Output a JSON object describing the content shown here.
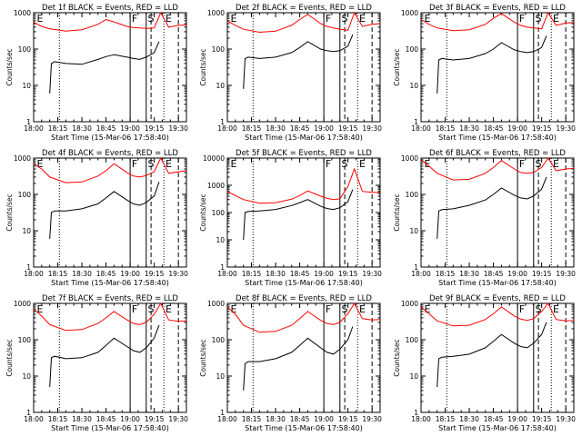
{
  "figure": {
    "axes_color": "#000000",
    "events_color": "#000000",
    "lld_color": "#ff0000"
  },
  "chart_data": [
    {
      "type": "line",
      "title": "Det 1f BLACK = Events, RED = LLD",
      "xlabel": "Start Time (15-Mar-06 17:58:40)",
      "ylabel": "Counts/sec",
      "y_scale": "log",
      "ylim": [
        1,
        1000
      ],
      "yticks": [
        "1",
        "10",
        "100",
        "1000"
      ],
      "xticks": [
        "18:00",
        "18:15",
        "18:30",
        "18:45",
        "19:00",
        "19:15",
        "19:30"
      ],
      "event_markers": [
        "E",
        "F",
        "S",
        "E"
      ],
      "series": [
        {
          "name": "RED = LLD",
          "color": "#ff0000",
          "x_min": [
            0,
            5,
            10,
            20,
            30,
            40,
            45,
            50,
            58,
            62,
            66,
            70,
            75,
            79,
            84,
            90,
            95
          ],
          "values": [
            550,
            420,
            360,
            310,
            340,
            480,
            650,
            560,
            420,
            390,
            380,
            370,
            380,
            1000,
            400,
            450,
            460
          ]
        },
        {
          "name": "BLACK = Events",
          "color": "#000000",
          "x_min": [
            10,
            11,
            13,
            20,
            30,
            40,
            45,
            50,
            58,
            62,
            66,
            70,
            75,
            78
          ],
          "values": [
            6,
            40,
            45,
            40,
            38,
            52,
            62,
            70,
            60,
            55,
            52,
            60,
            80,
            160
          ]
        }
      ]
    },
    {
      "type": "line",
      "title": "Det 2f BLACK = Events, RED = LLD",
      "xlabel": "Start Time (15-Mar-06 17:58:40)",
      "ylabel": "Counts/sec",
      "y_scale": "log",
      "ylim": [
        1,
        1000
      ],
      "yticks": [
        "1",
        "10",
        "100",
        "1000"
      ],
      "xticks": [
        "18:00",
        "18:15",
        "18:30",
        "18:45",
        "19:00",
        "19:15",
        "19:30"
      ],
      "event_markers": [
        "E",
        "F",
        "S",
        "E"
      ],
      "series": [
        {
          "name": "RED = LLD",
          "color": "#ff0000",
          "x_min": [
            0,
            5,
            10,
            20,
            30,
            40,
            45,
            50,
            58,
            62,
            66,
            70,
            75,
            79,
            84,
            90,
            95
          ],
          "values": [
            600,
            450,
            350,
            290,
            310,
            450,
            650,
            900,
            500,
            420,
            380,
            350,
            330,
            1000,
            420,
            480,
            500
          ]
        },
        {
          "name": "BLACK = Events",
          "color": "#000000",
          "x_min": [
            10,
            11,
            13,
            20,
            30,
            40,
            45,
            50,
            58,
            62,
            66,
            70,
            75,
            78
          ],
          "values": [
            8,
            55,
            60,
            55,
            60,
            80,
            110,
            160,
            100,
            90,
            85,
            90,
            120,
            250
          ]
        }
      ]
    },
    {
      "type": "line",
      "title": "Det 3f BLACK = Events, RED = LLD",
      "xlabel": "Start Time (15-Mar-06 17:58:40)",
      "ylabel": "Counts/sec",
      "y_scale": "log",
      "ylim": [
        1,
        1000
      ],
      "yticks": [
        "1",
        "10",
        "100",
        "1000"
      ],
      "xticks": [
        "18:00",
        "18:15",
        "18:30",
        "18:45",
        "19:00",
        "19:15",
        "19:30"
      ],
      "event_markers": [
        "E",
        "F",
        "S",
        "E"
      ],
      "series": [
        {
          "name": "RED = LLD",
          "color": "#ff0000",
          "x_min": [
            0,
            5,
            10,
            20,
            30,
            40,
            45,
            50,
            58,
            62,
            66,
            70,
            75,
            79,
            84,
            90,
            95
          ],
          "values": [
            650,
            480,
            380,
            320,
            340,
            480,
            700,
            950,
            550,
            450,
            400,
            380,
            360,
            1000,
            450,
            520,
            540
          ]
        },
        {
          "name": "BLACK = Events",
          "color": "#000000",
          "x_min": [
            10,
            11,
            13,
            20,
            30,
            40,
            45,
            50,
            58,
            62,
            66,
            70,
            75,
            78
          ],
          "values": [
            6,
            50,
            55,
            50,
            55,
            75,
            100,
            150,
            95,
            85,
            80,
            85,
            110,
            230
          ]
        }
      ]
    },
    {
      "type": "line",
      "title": "Det 4f BLACK = Events, RED = LLD",
      "xlabel": "Start Time (15-Mar-06 17:58:40)",
      "ylabel": "Counts/sec",
      "y_scale": "log",
      "ylim": [
        1,
        1000
      ],
      "yticks": [
        "1",
        "10",
        "100",
        "1000"
      ],
      "xticks": [
        "18:00",
        "18:15",
        "18:30",
        "18:45",
        "19:00",
        "19:15",
        "19:30"
      ],
      "event_markers": [
        "E",
        "F",
        "S",
        "E"
      ],
      "series": [
        {
          "name": "RED = LLD",
          "color": "#ff0000",
          "x_min": [
            0,
            5,
            10,
            20,
            30,
            40,
            45,
            50,
            58,
            62,
            66,
            70,
            75,
            79,
            84,
            90,
            95
          ],
          "values": [
            700,
            500,
            300,
            210,
            220,
            320,
            450,
            700,
            400,
            320,
            300,
            330,
            420,
            1000,
            380,
            420,
            450
          ]
        },
        {
          "name": "BLACK = Events",
          "color": "#000000",
          "x_min": [
            10,
            11,
            13,
            20,
            30,
            40,
            45,
            50,
            58,
            62,
            66,
            70,
            75,
            78
          ],
          "values": [
            6,
            32,
            35,
            35,
            40,
            55,
            80,
            120,
            70,
            55,
            50,
            60,
            90,
            220
          ]
        }
      ]
    },
    {
      "type": "line",
      "title": "Det 5f BLACK = Events, RED = LLD",
      "xlabel": "Start Time (15-Mar-06 17:58:40)",
      "ylabel": "Counts/sec",
      "y_scale": "log",
      "ylim": [
        1,
        10000
      ],
      "yticks": [
        "1",
        "10",
        "100",
        "1000",
        "10000"
      ],
      "xticks": [
        "18:00",
        "18:15",
        "18:30",
        "18:45",
        "19:00",
        "19:15",
        "19:30"
      ],
      "event_markers": [
        "E",
        "F",
        "S",
        "E"
      ],
      "series": [
        {
          "name": "RED = LLD",
          "color": "#ff0000",
          "x_min": [
            0,
            5,
            10,
            20,
            30,
            40,
            45,
            50,
            58,
            62,
            66,
            70,
            75,
            79,
            84,
            90,
            95
          ],
          "values": [
            600,
            420,
            300,
            220,
            230,
            310,
            420,
            620,
            400,
            330,
            300,
            320,
            900,
            4000,
            600,
            550,
            540
          ]
        },
        {
          "name": "BLACK = Events",
          "color": "#000000",
          "x_min": [
            10,
            11,
            13,
            20,
            30,
            40,
            45,
            50,
            58,
            62,
            66,
            70,
            75,
            78
          ],
          "values": [
            10,
            100,
            110,
            115,
            130,
            180,
            230,
            300,
            170,
            140,
            130,
            150,
            250,
            700
          ]
        }
      ]
    },
    {
      "type": "line",
      "title": "Det 6f BLACK = Events, RED = LLD",
      "xlabel": "Start Time (15-Mar-06 17:58:40)",
      "ylabel": "Counts/sec",
      "y_scale": "log",
      "ylim": [
        1,
        1000
      ],
      "yticks": [
        "1",
        "10",
        "100",
        "1000"
      ],
      "xticks": [
        "18:00",
        "18:15",
        "18:30",
        "18:45",
        "19:00",
        "19:15",
        "19:30"
      ],
      "event_markers": [
        "E",
        "F",
        "S",
        "E"
      ],
      "series": [
        {
          "name": "RED = LLD",
          "color": "#ff0000",
          "x_min": [
            0,
            5,
            10,
            20,
            30,
            40,
            45,
            50,
            58,
            62,
            66,
            70,
            75,
            79,
            84,
            90,
            95
          ],
          "values": [
            900,
            600,
            380,
            250,
            260,
            380,
            550,
            850,
            500,
            400,
            380,
            400,
            550,
            1000,
            450,
            500,
            520
          ]
        },
        {
          "name": "BLACK = Events",
          "color": "#000000",
          "x_min": [
            10,
            11,
            13,
            20,
            30,
            40,
            45,
            50,
            58,
            62,
            66,
            70,
            75,
            78
          ],
          "values": [
            6,
            35,
            38,
            40,
            50,
            70,
            100,
            150,
            95,
            80,
            75,
            90,
            140,
            300
          ]
        }
      ]
    },
    {
      "type": "line",
      "title": "Det 7f BLACK = Events, RED = LLD",
      "xlabel": "Start Time (15-Mar-06 17:58:40)",
      "ylabel": "Counts/sec",
      "y_scale": "log",
      "ylim": [
        1,
        1000
      ],
      "yticks": [
        "1",
        "10",
        "100",
        "1000"
      ],
      "xticks": [
        "18:00",
        "18:15",
        "18:30",
        "18:45",
        "19:00",
        "19:15",
        "19:30"
      ],
      "event_markers": [
        "E",
        "F",
        "S",
        "E"
      ],
      "series": [
        {
          "name": "RED = LLD",
          "color": "#ff0000",
          "x_min": [
            0,
            5,
            10,
            20,
            30,
            40,
            45,
            50,
            58,
            62,
            66,
            70,
            75,
            79,
            84,
            90,
            95
          ],
          "values": [
            700,
            450,
            260,
            180,
            190,
            280,
            400,
            600,
            350,
            280,
            260,
            300,
            500,
            1000,
            350,
            320,
            330
          ]
        },
        {
          "name": "BLACK = Events",
          "color": "#000000",
          "x_min": [
            10,
            11,
            13,
            20,
            30,
            40,
            45,
            50,
            58,
            62,
            66,
            70,
            75,
            78
          ],
          "values": [
            5,
            32,
            35,
            30,
            32,
            45,
            70,
            110,
            65,
            50,
            45,
            60,
            110,
            250
          ]
        }
      ]
    },
    {
      "type": "line",
      "title": "Det 8f BLACK = Events, RED = LLD",
      "xlabel": "Start Time (15-Mar-06 17:58:40)",
      "ylabel": "Counts/sec",
      "y_scale": "log",
      "ylim": [
        1,
        1000
      ],
      "yticks": [
        "1",
        "10",
        "100",
        "1000"
      ],
      "xticks": [
        "18:00",
        "18:15",
        "18:30",
        "18:45",
        "19:00",
        "19:15",
        "19:30"
      ],
      "event_markers": [
        "E",
        "F",
        "S",
        "E"
      ],
      "series": [
        {
          "name": "RED = LLD",
          "color": "#ff0000",
          "x_min": [
            0,
            5,
            10,
            20,
            30,
            40,
            45,
            50,
            58,
            62,
            66,
            70,
            75,
            79,
            84,
            90,
            95
          ],
          "values": [
            800,
            500,
            250,
            160,
            170,
            250,
            380,
            600,
            340,
            280,
            260,
            300,
            520,
            1000,
            380,
            350,
            360
          ]
        },
        {
          "name": "BLACK = Events",
          "color": "#000000",
          "x_min": [
            10,
            11,
            13,
            20,
            30,
            40,
            45,
            50,
            58,
            62,
            66,
            70,
            75,
            78
          ],
          "values": [
            4,
            22,
            25,
            25,
            30,
            45,
            70,
            110,
            60,
            45,
            40,
            55,
            100,
            230
          ]
        }
      ]
    },
    {
      "type": "line",
      "title": "Det 9f BLACK = Events, RED = LLD",
      "xlabel": "Start Time (15-Mar-06 17:58:40)",
      "ylabel": "Counts/sec",
      "y_scale": "log",
      "ylim": [
        1,
        1000
      ],
      "yticks": [
        "1",
        "10",
        "100",
        "1000"
      ],
      "xticks": [
        "18:00",
        "18:15",
        "18:30",
        "18:45",
        "19:00",
        "19:15",
        "19:30"
      ],
      "event_markers": [
        "E",
        "F",
        "S",
        "E"
      ],
      "series": [
        {
          "name": "RED = LLD",
          "color": "#ff0000",
          "x_min": [
            0,
            5,
            10,
            20,
            30,
            40,
            45,
            50,
            58,
            62,
            66,
            70,
            75,
            79,
            84,
            90,
            95
          ],
          "values": [
            800,
            520,
            330,
            240,
            250,
            360,
            520,
            800,
            450,
            370,
            340,
            380,
            600,
            1000,
            360,
            330,
            340
          ]
        },
        {
          "name": "BLACK = Events",
          "color": "#000000",
          "x_min": [
            10,
            11,
            13,
            20,
            30,
            40,
            45,
            50,
            58,
            62,
            66,
            70,
            75,
            78
          ],
          "values": [
            5,
            30,
            33,
            35,
            40,
            60,
            90,
            140,
            80,
            65,
            60,
            80,
            140,
            300
          ]
        }
      ]
    }
  ]
}
